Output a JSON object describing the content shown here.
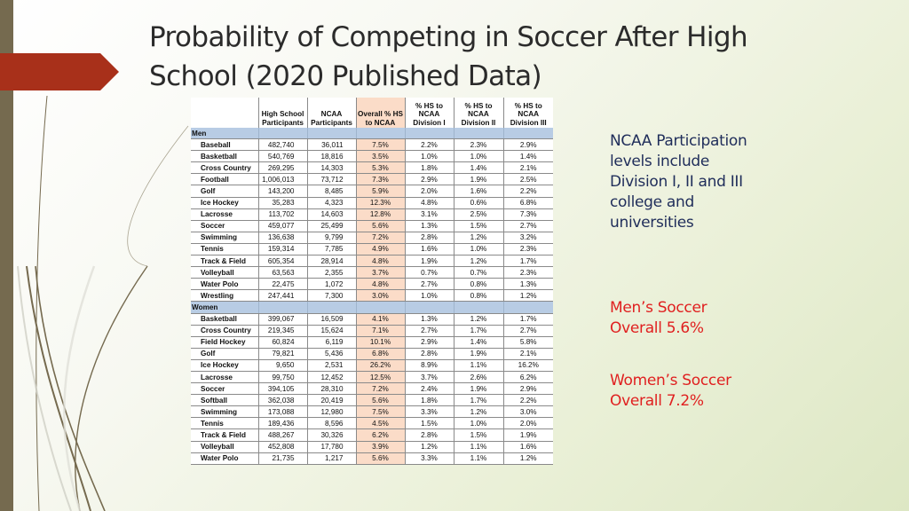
{
  "slide": {
    "title": "Probability of Competing in Soccer After High School (2020 Published Data)",
    "side_note": "NCAA Participation levels include Division I, II and III college and universities",
    "callouts": {
      "men": "Men’s Soccer Overall 5.6%",
      "women": "Women’s Soccer Overall 7.2%"
    },
    "colors": {
      "accent_arrow": "#a8301a",
      "left_bar": "#756a4f",
      "callout_text": "#e02020",
      "note_text": "#1f2d5a",
      "section_row": "#b8cce4",
      "highlight_column": "#fbdcc8"
    }
  },
  "table": {
    "headers": [
      "",
      "High School Participants",
      "NCAA Participants",
      "Overall % HS to NCAA",
      "% HS to NCAA Division I",
      "% HS to NCAA Division II",
      "% HS to NCAA Division III"
    ],
    "sections": [
      {
        "label": "Men",
        "rows": [
          [
            "Baseball",
            "482,740",
            "36,011",
            "7.5%",
            "2.2%",
            "2.3%",
            "2.9%"
          ],
          [
            "Basketball",
            "540,769",
            "18,816",
            "3.5%",
            "1.0%",
            "1.0%",
            "1.4%"
          ],
          [
            "Cross Country",
            "269,295",
            "14,303",
            "5.3%",
            "1.8%",
            "1.4%",
            "2.1%"
          ],
          [
            "Football",
            "1,006,013",
            "73,712",
            "7.3%",
            "2.9%",
            "1.9%",
            "2.5%"
          ],
          [
            "Golf",
            "143,200",
            "8,485",
            "5.9%",
            "2.0%",
            "1.6%",
            "2.2%"
          ],
          [
            "Ice Hockey",
            "35,283",
            "4,323",
            "12.3%",
            "4.8%",
            "0.6%",
            "6.8%"
          ],
          [
            "Lacrosse",
            "113,702",
            "14,603",
            "12.8%",
            "3.1%",
            "2.5%",
            "7.3%"
          ],
          [
            "Soccer",
            "459,077",
            "25,499",
            "5.6%",
            "1.3%",
            "1.5%",
            "2.7%"
          ],
          [
            "Swimming",
            "136,638",
            "9,799",
            "7.2%",
            "2.8%",
            "1.2%",
            "3.2%"
          ],
          [
            "Tennis",
            "159,314",
            "7,785",
            "4.9%",
            "1.6%",
            "1.0%",
            "2.3%"
          ],
          [
            "Track & Field",
            "605,354",
            "28,914",
            "4.8%",
            "1.9%",
            "1.2%",
            "1.7%"
          ],
          [
            "Volleyball",
            "63,563",
            "2,355",
            "3.7%",
            "0.7%",
            "0.7%",
            "2.3%"
          ],
          [
            "Water Polo",
            "22,475",
            "1,072",
            "4.8%",
            "2.7%",
            "0.8%",
            "1.3%"
          ],
          [
            "Wrestling",
            "247,441",
            "7,300",
            "3.0%",
            "1.0%",
            "0.8%",
            "1.2%"
          ]
        ]
      },
      {
        "label": "Women",
        "rows": [
          [
            "Basketball",
            "399,067",
            "16,509",
            "4.1%",
            "1.3%",
            "1.2%",
            "1.7%"
          ],
          [
            "Cross Country",
            "219,345",
            "15,624",
            "7.1%",
            "2.7%",
            "1.7%",
            "2.7%"
          ],
          [
            "Field Hockey",
            "60,824",
            "6,119",
            "10.1%",
            "2.9%",
            "1.4%",
            "5.8%"
          ],
          [
            "Golf",
            "79,821",
            "5,436",
            "6.8%",
            "2.8%",
            "1.9%",
            "2.1%"
          ],
          [
            "Ice Hockey",
            "9,650",
            "2,531",
            "26.2%",
            "8.9%",
            "1.1%",
            "16.2%"
          ],
          [
            "Lacrosse",
            "99,750",
            "12,452",
            "12.5%",
            "3.7%",
            "2.6%",
            "6.2%"
          ],
          [
            "Soccer",
            "394,105",
            "28,310",
            "7.2%",
            "2.4%",
            "1.9%",
            "2.9%"
          ],
          [
            "Softball",
            "362,038",
            "20,419",
            "5.6%",
            "1.8%",
            "1.7%",
            "2.2%"
          ],
          [
            "Swimming",
            "173,088",
            "12,980",
            "7.5%",
            "3.3%",
            "1.2%",
            "3.0%"
          ],
          [
            "Tennis",
            "189,436",
            "8,596",
            "4.5%",
            "1.5%",
            "1.0%",
            "2.0%"
          ],
          [
            "Track & Field",
            "488,267",
            "30,326",
            "6.2%",
            "2.8%",
            "1.5%",
            "1.9%"
          ],
          [
            "Volleyball",
            "452,808",
            "17,780",
            "3.9%",
            "1.2%",
            "1.1%",
            "1.6%"
          ],
          [
            "Water Polo",
            "21,735",
            "1,217",
            "5.6%",
            "3.3%",
            "1.1%",
            "1.2%"
          ]
        ]
      }
    ]
  }
}
